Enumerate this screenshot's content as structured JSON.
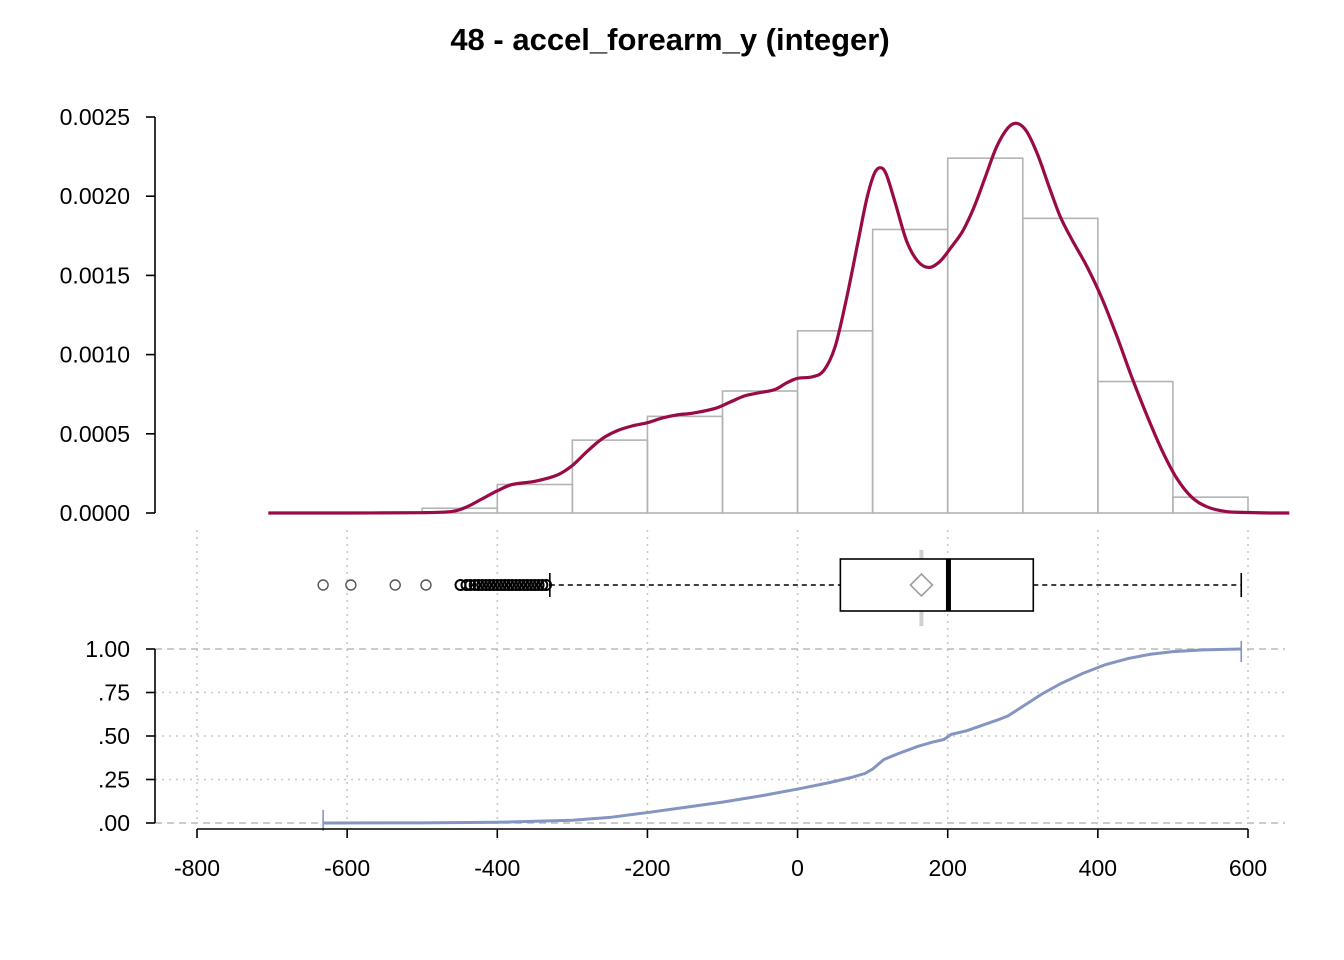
{
  "chart_data": {
    "type": "histogram",
    "title": "48 - accel_forearm_y (integer)",
    "xlabel": "",
    "ylabel": "",
    "xlim": [
      -830,
      650
    ],
    "x_ticks": [
      -800,
      -600,
      -400,
      -200,
      0,
      200,
      400,
      600
    ],
    "x_tick_labels": [
      "-800",
      "-600",
      "-400",
      "-200",
      "0",
      "200",
      "400",
      "600"
    ],
    "colors": {
      "histogram_border": "#b3b3b3",
      "density": "#990a47",
      "box": "#000000",
      "mean_marker": "#a0a0a0",
      "ecdf": "#8495c2",
      "grid": "#c8c8c8"
    },
    "panels": {
      "density": {
        "ylim": [
          0,
          0.0025
        ],
        "y_ticks": [
          0,
          0.0005,
          0.001,
          0.0015,
          0.002,
          0.0025
        ],
        "y_tick_labels": [
          "0.0000",
          "0.0005",
          "0.0010",
          "0.0015",
          "0.0020",
          "0.0025"
        ],
        "histogram": {
          "bin_width": 100,
          "bins": [
            {
              "x0": -500,
              "x1": -400,
              "density": 3e-05
            },
            {
              "x0": -400,
              "x1": -300,
              "density": 0.00018
            },
            {
              "x0": -300,
              "x1": -200,
              "density": 0.00046
            },
            {
              "x0": -200,
              "x1": -100,
              "density": 0.00061
            },
            {
              "x0": -100,
              "x1": 0,
              "density": 0.00077
            },
            {
              "x0": 0,
              "x1": 100,
              "density": 0.00115
            },
            {
              "x0": 100,
              "x1": 200,
              "density": 0.00179
            },
            {
              "x0": 200,
              "x1": 300,
              "density": 0.00224
            },
            {
              "x0": 300,
              "x1": 400,
              "density": 0.00186
            },
            {
              "x0": 400,
              "x1": 500,
              "density": 0.00083
            },
            {
              "x0": 500,
              "x1": 600,
              "density": 0.0001
            }
          ]
        },
        "density_curve": [
          [
            -705,
            0
          ],
          [
            -600,
            0
          ],
          [
            -500,
            2e-06
          ],
          [
            -460,
            1e-05
          ],
          [
            -440,
            4e-05
          ],
          [
            -420,
            9e-05
          ],
          [
            -400,
            0.00014
          ],
          [
            -380,
            0.00018
          ],
          [
            -350,
            0.0002
          ],
          [
            -320,
            0.00024
          ],
          [
            -300,
            0.0003
          ],
          [
            -280,
            0.00039
          ],
          [
            -260,
            0.00047
          ],
          [
            -240,
            0.00052
          ],
          [
            -220,
            0.00055
          ],
          [
            -200,
            0.00057
          ],
          [
            -180,
            0.0006
          ],
          [
            -160,
            0.00062
          ],
          [
            -140,
            0.00063
          ],
          [
            -110,
            0.00066
          ],
          [
            -90,
            0.0007
          ],
          [
            -70,
            0.00074
          ],
          [
            -50,
            0.00076
          ],
          [
            -30,
            0.00078
          ],
          [
            -15,
            0.00082
          ],
          [
            0,
            0.00085
          ],
          [
            20,
            0.00086
          ],
          [
            35,
            0.0009
          ],
          [
            50,
            0.00105
          ],
          [
            65,
            0.00135
          ],
          [
            80,
            0.0017
          ],
          [
            92,
            0.00198
          ],
          [
            102,
            0.00214
          ],
          [
            110,
            0.00218
          ],
          [
            118,
            0.00214
          ],
          [
            130,
            0.00196
          ],
          [
            145,
            0.00172
          ],
          [
            160,
            0.00159
          ],
          [
            175,
            0.00155
          ],
          [
            190,
            0.00159
          ],
          [
            205,
            0.00168
          ],
          [
            220,
            0.00178
          ],
          [
            235,
            0.00193
          ],
          [
            250,
            0.00212
          ],
          [
            265,
            0.00231
          ],
          [
            280,
            0.00243
          ],
          [
            292,
            0.00246
          ],
          [
            305,
            0.00241
          ],
          [
            320,
            0.00226
          ],
          [
            335,
            0.00206
          ],
          [
            350,
            0.00187
          ],
          [
            365,
            0.00173
          ],
          [
            385,
            0.00156
          ],
          [
            405,
            0.00136
          ],
          [
            425,
            0.00112
          ],
          [
            445,
            0.00086
          ],
          [
            465,
            0.00062
          ],
          [
            485,
            0.0004
          ],
          [
            505,
            0.00022
          ],
          [
            525,
            0.0001
          ],
          [
            545,
            4e-05
          ],
          [
            570,
            1e-05
          ],
          [
            600,
            3e-06
          ],
          [
            630,
            0
          ],
          [
            655,
            0
          ]
        ]
      },
      "boxplot": {
        "lower_whisker": -330,
        "q1": 57,
        "median": 201,
        "q3": 314,
        "upper_whisker": 591,
        "mean": 165,
        "outliers": [
          -632,
          -595,
          -536,
          -495,
          -449,
          -441,
          -436,
          -430,
          -425,
          -420,
          -415,
          -410,
          -405,
          -400,
          -395,
          -390,
          -385,
          -380,
          -375,
          -370,
          -365,
          -360,
          -355,
          -350,
          -345,
          -340,
          -335
        ]
      },
      "ecdf": {
        "ylim": [
          0,
          1
        ],
        "y_ticks": [
          0,
          0.25,
          0.5,
          0.75,
          1
        ],
        "y_tick_labels": [
          ".00",
          ".25",
          ".50",
          ".75",
          "1.00"
        ],
        "x_min": -632,
        "x_max": 591,
        "points": [
          [
            -632,
            0
          ],
          [
            -500,
            0.001
          ],
          [
            -400,
            0.004
          ],
          [
            -300,
            0.016
          ],
          [
            -250,
            0.032
          ],
          [
            -200,
            0.06
          ],
          [
            -150,
            0.09
          ],
          [
            -100,
            0.12
          ],
          [
            -50,
            0.155
          ],
          [
            0,
            0.195
          ],
          [
            40,
            0.23
          ],
          [
            70,
            0.26
          ],
          [
            90,
            0.285
          ],
          [
            100,
            0.31
          ],
          [
            115,
            0.365
          ],
          [
            135,
            0.4
          ],
          [
            160,
            0.44
          ],
          [
            180,
            0.465
          ],
          [
            195,
            0.48
          ],
          [
            205,
            0.51
          ],
          [
            225,
            0.53
          ],
          [
            245,
            0.56
          ],
          [
            265,
            0.59
          ],
          [
            280,
            0.615
          ],
          [
            300,
            0.67
          ],
          [
            325,
            0.74
          ],
          [
            350,
            0.8
          ],
          [
            380,
            0.86
          ],
          [
            410,
            0.91
          ],
          [
            440,
            0.945
          ],
          [
            470,
            0.97
          ],
          [
            500,
            0.985
          ],
          [
            540,
            0.995
          ],
          [
            591,
            1
          ]
        ]
      }
    }
  }
}
